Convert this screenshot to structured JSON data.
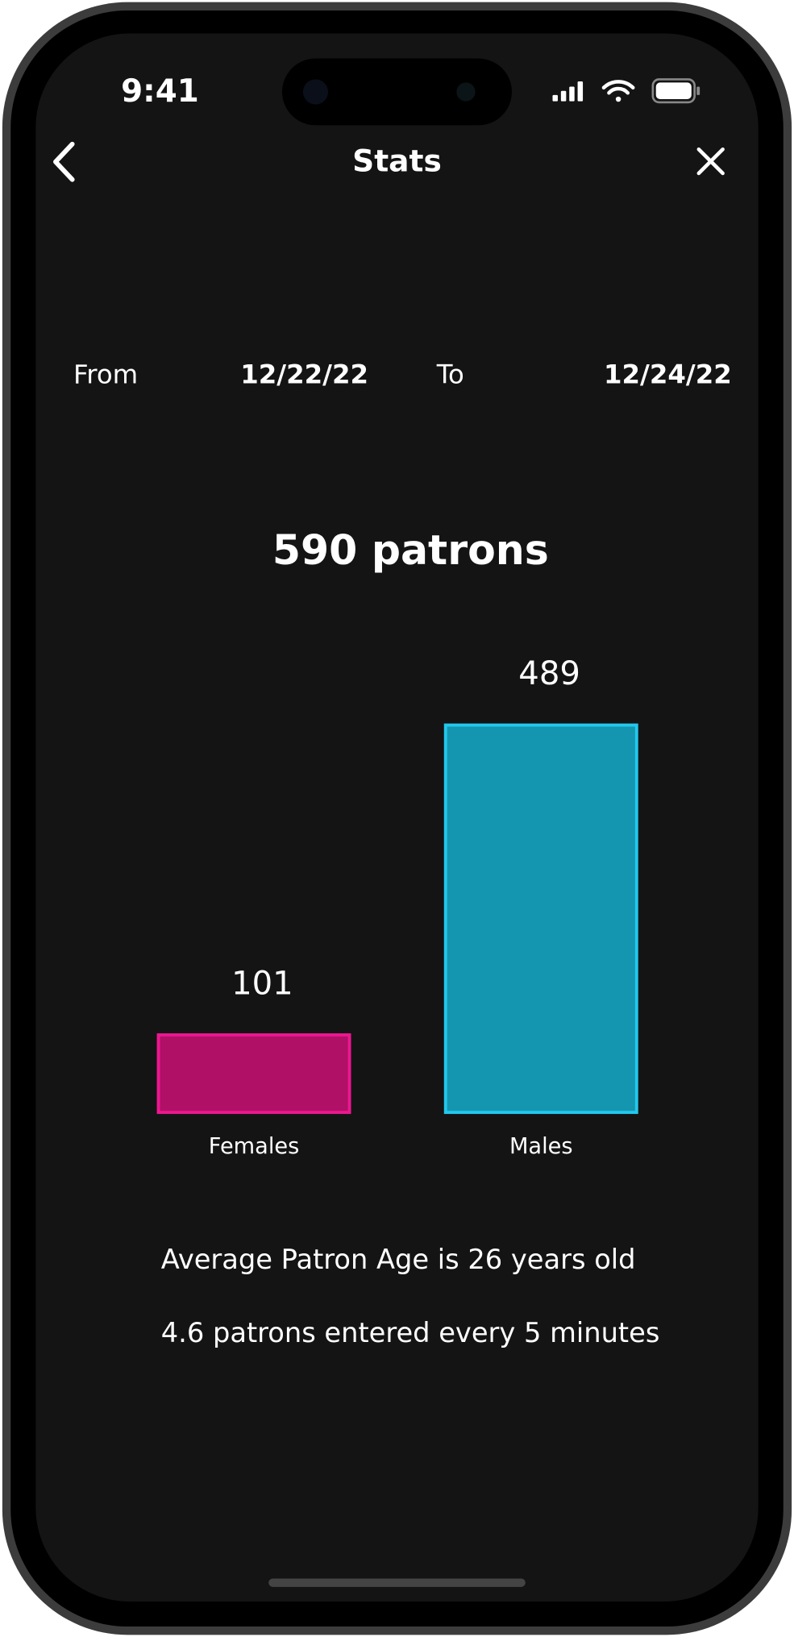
{
  "status_bar": {
    "time": "9:41"
  },
  "header": {
    "title": "Stats"
  },
  "date_range": {
    "from_label": "From",
    "from": "12/22/22",
    "to_label": "To",
    "to": "12/24/22"
  },
  "summary": "590 patrons",
  "chart_data": {
    "type": "bar",
    "categories": [
      "Females",
      "Males"
    ],
    "values": [
      101,
      489
    ],
    "colors": [
      "#b01066",
      "#1596b0"
    ],
    "border_colors": [
      "#ec1790",
      "#22c8ec"
    ]
  },
  "stats": [
    "Average Patron Age is 26 years old",
    "4.6 patrons entered every 5 minutes"
  ]
}
